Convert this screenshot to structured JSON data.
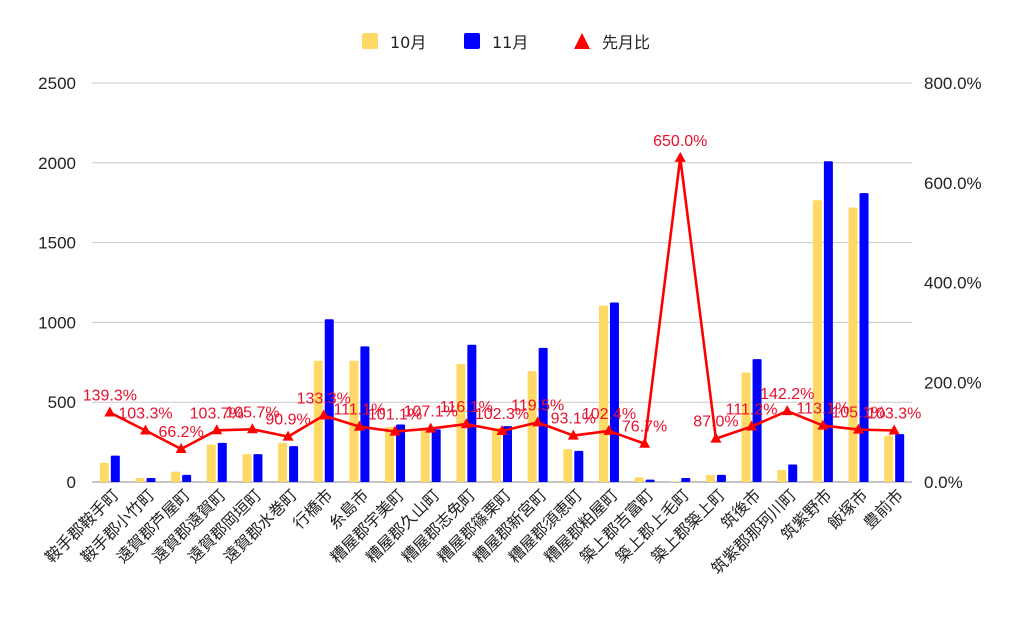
{
  "chart_data": {
    "type": "bar",
    "categories": [
      "鞍手郡鞍手町",
      "鞍手郡小竹町",
      "遠賀郡芦屋町",
      "遠賀郡遠賀町",
      "遠賀郡岡垣町",
      "遠賀郡水巻町",
      "行橋市",
      "糸島市",
      "糟屋郡宇美町",
      "糟屋郡久山町",
      "糟屋郡志免町",
      "糟屋郡篠栗町",
      "糟屋郡新宮町",
      "糟屋郡須恵町",
      "糟屋郡粕屋町",
      "築上郡吉富町",
      "築上郡上毛町",
      "築上郡築上町",
      "筑後市",
      "筑紫郡那珂川町",
      "筑紫野市",
      "飯塚市",
      "豊前市"
    ],
    "series": [
      {
        "name": "10月",
        "type": "bar",
        "axis": "left",
        "color": "#ffd966",
        "values": [
          120,
          25,
          65,
          235,
          175,
          245,
          760,
          760,
          345,
          335,
          740,
          340,
          695,
          205,
          1105,
          30,
          2,
          45,
          685,
          75,
          1765,
          1720,
          290
        ]
      },
      {
        "name": "11月",
        "type": "bar",
        "axis": "left",
        "color": "#0000ff",
        "values": [
          165,
          25,
          45,
          245,
          175,
          225,
          1020,
          850,
          360,
          330,
          860,
          350,
          840,
          195,
          1125,
          15,
          25,
          45,
          770,
          110,
          2010,
          1810,
          300
        ]
      },
      {
        "name": "先月比",
        "type": "line",
        "axis": "right",
        "color": "#ff0000",
        "values": [
          139.3,
          103.3,
          66.2,
          103.7,
          105.7,
          90.9,
          133.3,
          111.1,
          101.1,
          107.1,
          116.1,
          102.3,
          119.5,
          93.1,
          102.4,
          76.7,
          650.0,
          87.0,
          111.2,
          142.2,
          113.1,
          105.1,
          103.3
        ],
        "labels": [
          "139.3%",
          "103.3%",
          "66.2%",
          "103.7%",
          "105.7%",
          "90.9%",
          "133.3%",
          "111.1%",
          "101.1%",
          "107.1%",
          "116.1%",
          "102.3%",
          "119.5%",
          "93.1%",
          "102.4%",
          "76.7%",
          "650.0%",
          "87.0%",
          "111.2%",
          "142.2%",
          "113.1%",
          "105.1%",
          "103.3%"
        ]
      }
    ],
    "y_left": {
      "ticks": [
        "0",
        "500",
        "1000",
        "1500",
        "2000",
        "2500"
      ],
      "lim": [
        0,
        2500
      ]
    },
    "y_right": {
      "ticks": [
        "0.0%",
        "200.0%",
        "400.0%",
        "600.0%",
        "800.0%"
      ],
      "lim": [
        0,
        800
      ]
    },
    "legend": {
      "position": "top",
      "items": [
        "10月",
        "11月",
        "先月比"
      ]
    },
    "grid": true
  }
}
